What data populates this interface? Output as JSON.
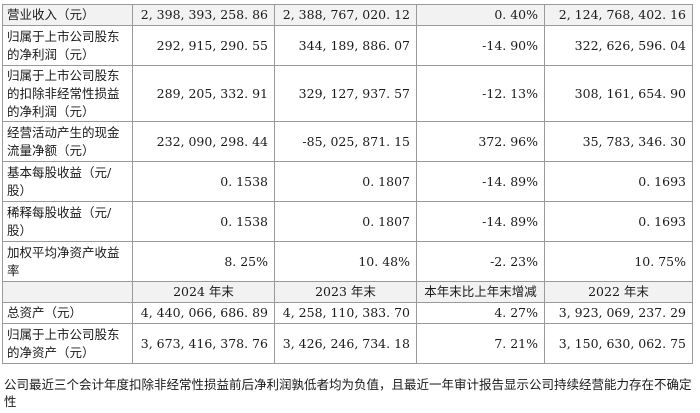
{
  "rows_top": [
    {
      "label": "营业收入（元）",
      "v2024": "2, 398, 393, 258. 86",
      "v2023": "2, 388, 767, 020. 12",
      "change": "0. 40%",
      "v2022": "2, 124, 768, 402. 16"
    },
    {
      "label": "归属于上市公司股东的净利润（元）",
      "v2024": "292, 915, 290. 55",
      "v2023": "344, 189, 886. 07",
      "change": "-14. 90%",
      "v2022": "322, 626, 596. 04"
    },
    {
      "label": "归属于上市公司股东的扣除非经常性损益的净利润（元）",
      "v2024": "289, 205, 332. 91",
      "v2023": "329, 127, 937. 57",
      "change": "-12. 13%",
      "v2022": "308, 161, 654. 90"
    },
    {
      "label": "经营活动产生的现金流量净额（元）",
      "v2024": "232, 090, 298. 44",
      "v2023": "-85, 025, 871. 15",
      "change": "372. 96%",
      "v2022": "35, 783, 346. 30"
    },
    {
      "label": "基本每股收益（元/股）",
      "v2024": "0. 1538",
      "v2023": "0. 1807",
      "change": "-14. 89%",
      "v2022": "0. 1693"
    },
    {
      "label": "稀释每股收益（元/股）",
      "v2024": "0. 1538",
      "v2023": "0. 1807",
      "change": "-14. 89%",
      "v2022": "0. 1693"
    },
    {
      "label": "加权平均净资产收益率",
      "v2024": "8. 25%",
      "v2023": "10. 48%",
      "change": "-2. 23%",
      "v2022": "10. 75%"
    }
  ],
  "subheader": {
    "c1": "",
    "c2": "2024 年末",
    "c3": "2023 年末",
    "c4": "本年末比上年末增减",
    "c5": "2022 年末"
  },
  "rows_bottom": [
    {
      "label": "总资产（元）",
      "v2024": "4, 440, 066, 686. 89",
      "v2023": "4, 258, 110, 383. 70",
      "change": "4. 27%",
      "v2022": "3, 923, 069, 237. 29"
    },
    {
      "label": "归属于上市公司股东的净资产（元）",
      "v2024": "3, 673, 416, 378. 76",
      "v2023": "3, 426, 246, 734. 18",
      "change": "7. 21%",
      "v2022": "3, 150, 630, 062. 75"
    }
  ],
  "note": "公司最近三个会计年度扣除非经常性损益前后净利润孰低者均为负值，且最近一年审计报告显示公司持续经营能力存在不确定性"
}
